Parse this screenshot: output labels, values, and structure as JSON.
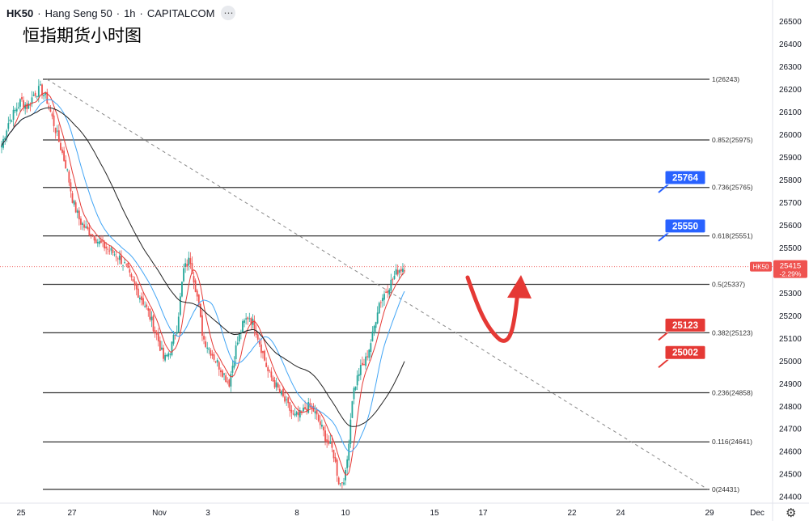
{
  "header": {
    "symbol": "HK50",
    "name": "Hang Seng 50",
    "interval": "1h",
    "source": "CAPITALCOM"
  },
  "title": "恒指期货小时图",
  "colors": {
    "up": "#26a69a",
    "down": "#ef5350",
    "fib_line": "#333333",
    "trend_line": "#888888",
    "ma_fast": "#e53935",
    "ma_mid": "#42a5f5",
    "ma_slow": "#222222",
    "label_blue": "#2962ff",
    "label_red": "#e53935",
    "arrow": "#e53935"
  },
  "chart_data": {
    "type": "candlestick",
    "y_axis": {
      "range": [
        24370,
        26560
      ],
      "ticks": [
        24400,
        24500,
        24600,
        24700,
        24800,
        24900,
        25000,
        25100,
        25200,
        25300,
        25400,
        25500,
        25600,
        25700,
        25800,
        25900,
        26000,
        26100,
        26200,
        26300,
        26400,
        26500
      ]
    },
    "x_axis": {
      "tick_labels": [
        "25",
        "27",
        "Nov",
        "3",
        "8",
        "10",
        "15",
        "17",
        "22",
        "24",
        "29",
        "Dec"
      ]
    },
    "last_price": {
      "symbol": "HK50",
      "value": "25415",
      "change": "-2.29%"
    },
    "fib_levels": [
      {
        "label": "1(26243)",
        "ratio": 1,
        "value": 26243
      },
      {
        "label": "0.852(25975)",
        "ratio": 0.852,
        "value": 25975
      },
      {
        "label": "0.736(25765)",
        "ratio": 0.736,
        "value": 25765
      },
      {
        "label": "0.618(25551)",
        "ratio": 0.618,
        "value": 25551
      },
      {
        "label": "0.5(25337)",
        "ratio": 0.5,
        "value": 25337
      },
      {
        "label": "0.382(25123)",
        "ratio": 0.382,
        "value": 25123
      },
      {
        "label": "0.236(24858)",
        "ratio": 0.236,
        "value": 24858
      },
      {
        "label": "0.116(24641)",
        "ratio": 0.116,
        "value": 24641
      },
      {
        "label": "0(24431)",
        "ratio": 0,
        "value": 24431
      }
    ],
    "price_labels": [
      {
        "text": "25764",
        "value": 25764,
        "color": "blue"
      },
      {
        "text": "25550",
        "value": 25550,
        "color": "blue"
      },
      {
        "text": "25123",
        "value": 25123,
        "color": "red"
      },
      {
        "text": "25002",
        "value": 25002,
        "color": "red"
      }
    ],
    "trend_line": {
      "from": 26243,
      "to": 24431
    },
    "projection": "red curved arrow: dip then rise",
    "price_path": [
      25950,
      26050,
      26100,
      26150,
      26120,
      26180,
      26200,
      26150,
      26050,
      25950,
      25850,
      25700,
      25620,
      25580,
      25560,
      25520,
      25500,
      25480,
      25460,
      25420,
      25350,
      25300,
      25250,
      25180,
      25100,
      25000,
      25050,
      25150,
      25400,
      25450,
      25300,
      25100,
      25050,
      25000,
      24950,
      24900,
      25050,
      25150,
      25200,
      25150,
      25050,
      24950,
      24900,
      24850,
      24800,
      24750,
      24760,
      24800,
      24780,
      24720,
      24650,
      24600,
      24450,
      24500,
      24850,
      24950,
      25000,
      25100,
      25250,
      25300,
      25350,
      25400,
      25415
    ]
  }
}
